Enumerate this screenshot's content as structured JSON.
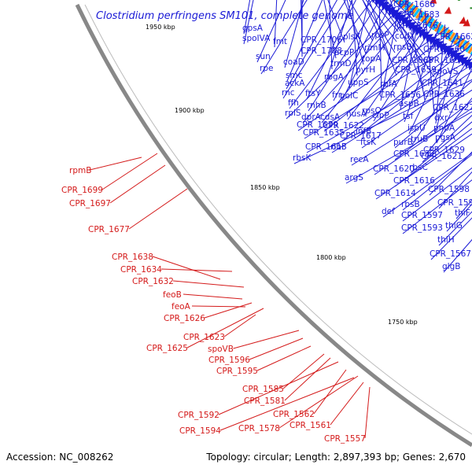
{
  "title": "Clostridium perfringens SM101, complete genome",
  "footer": {
    "accession": "Accession: NC_008262",
    "summary": "Topology: circular; Length: 2,897,393 bp; Genes: 2,670"
  },
  "kbp_labels": [
    "1950 kbp",
    "1900 kbp",
    "1850 kbp",
    "1800 kbp",
    "1750 kbp"
  ],
  "blue_labels": [
    "CPR_1686",
    "CPR_1683",
    "gpsA",
    "CPR_1676",
    "spoIVA",
    "fmt",
    "plsX",
    "rpsP",
    "codY",
    "CPR_1662",
    "CPR_1706",
    "CPR_1708",
    "acpP",
    "rimM",
    "rpsB",
    "CPR_1660",
    "sun",
    "coaD",
    "trmD",
    "topA",
    "CPR_1665",
    "CPR_1650",
    "rpe",
    "smc",
    "pyrH",
    "CPR_1659",
    "spoVS",
    "ackA",
    "rbgA",
    "rnc",
    "ftsY",
    "uppS",
    "rbfA",
    "CPR_1641",
    "ffh",
    "rnhB",
    "frr",
    "polC",
    "CPR_1656",
    "CPR_1636",
    "rplS",
    "dprA",
    "cdsA",
    "aspB",
    "CPR_1627",
    "nusA",
    "rpsO",
    "clpP",
    "tsf",
    "dxr",
    "CPR_1639",
    "CPR_1622",
    "ispU",
    "pnpA",
    "CPR_1635",
    "CPR_1617",
    "infB",
    "truB",
    "pgsA",
    "CPR_1613",
    "ribF",
    "ftsK",
    "purB",
    "CPR_1629",
    "rbsK",
    "recA",
    "CPR_1637",
    "CPR_1621",
    "CPR_1620",
    "rbsC",
    "argS",
    "CPR_1616",
    "CPR_1598",
    "CPR_1614",
    "CPR_1590",
    "rbsB",
    "def",
    "thiF",
    "CPR_1597",
    "thiG",
    "CPR_1593",
    "thiH",
    "CPR_1567",
    "glgB"
  ],
  "red_labels": [
    "rpmB",
    "CPR_1699",
    "CPR_1697",
    "CPR_1677",
    "CPR_1638",
    "CPR_1634",
    "CPR_1632",
    "feoB",
    "feoA",
    "CPR_1626",
    "CPR_1623",
    "CPR_1625",
    "spoVB",
    "CPR_1596",
    "CPR_1595",
    "CPR_1585",
    "CPR_1581",
    "CPR_1592",
    "CPR_1562",
    "CPR_1594",
    "CPR_1578",
    "CPR_1561",
    "CPR_1557"
  ],
  "colors": {
    "forward": "#1a1ad6",
    "reverse": "#d41a1a",
    "backbone": "#888888",
    "ticks": "#2a8a2a"
  }
}
